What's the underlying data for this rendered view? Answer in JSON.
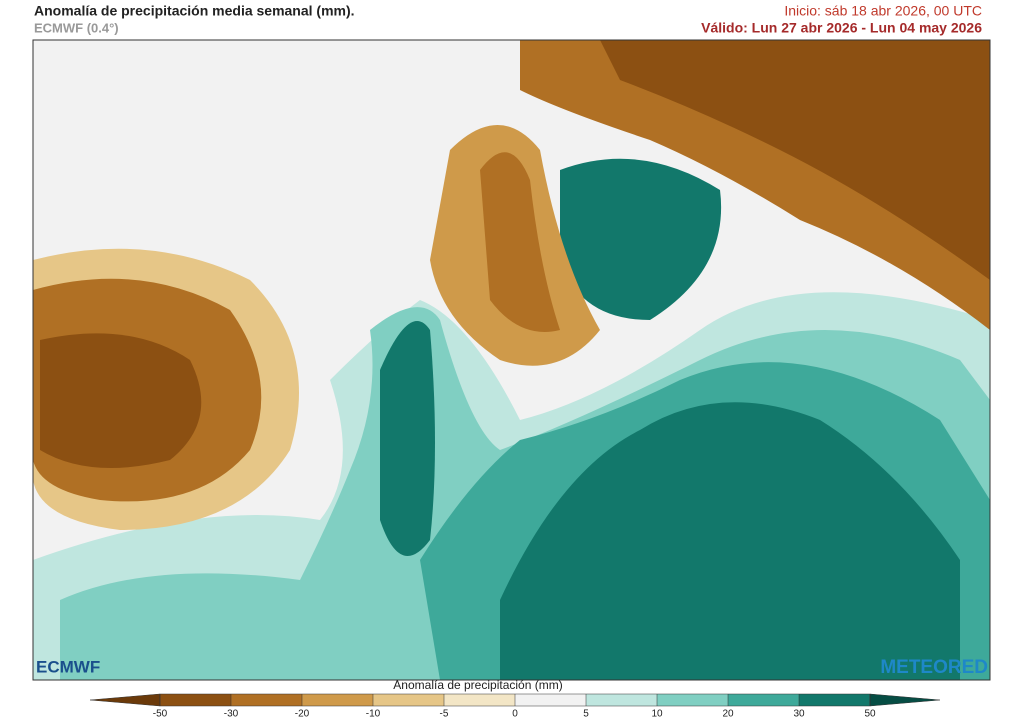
{
  "header": {
    "title": "Anomalía de precipitación media semanal (mm).",
    "subtitle": "ECMWF (0.4°)",
    "init": "Inicio:  sáb 18 abr 2026, 00 UTC",
    "valid": "Válido: Lun 27 abr 2026 - Lun 04 may 2026"
  },
  "logos": {
    "left": "ECMWF",
    "right": "METEORED"
  },
  "colorbar": {
    "label": "Anomalía de precipitación (mm)",
    "ticks": [
      -50,
      -30,
      -20,
      -10,
      -5,
      0,
      5,
      10,
      20,
      30,
      50
    ],
    "colors": [
      "#6b3a0a",
      "#8c5012",
      "#b07024",
      "#cf9a4a",
      "#e6c687",
      "#f3e6c6",
      "#f2f2f2",
      "#bfe6df",
      "#80cfc2",
      "#3ea99a",
      "#12786b",
      "#064d44"
    ]
  }
}
